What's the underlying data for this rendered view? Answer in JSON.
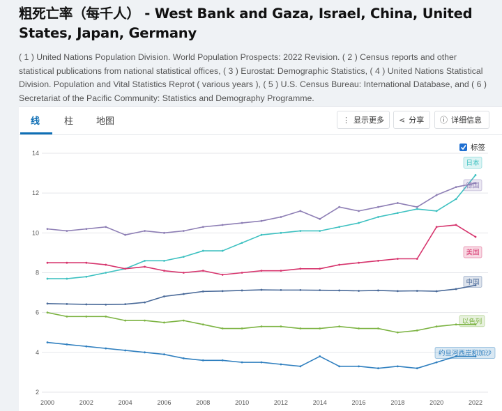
{
  "title": "粗死亡率（每千人） - West Bank and Gaza, Israel, China, United States, Japan, Germany",
  "source": "( 1 ) United Nations Population Division. World Population Prospects: 2022 Revision. ( 2 ) Census reports and other statistical publications from national statistical offices, ( 3 ) Eurostat: Demographic Statistics, ( 4 ) United Nations Statistical Division. Population and Vital Statistics Reprot ( various years ), ( 5 ) U.S. Census Bureau: International Database, and ( 6 ) Secretariat of the Pacific Community: Statistics and Demography Programme.",
  "tabs": [
    {
      "label": "线",
      "active": true
    },
    {
      "label": "柱",
      "active": false
    },
    {
      "label": "地图",
      "active": false
    }
  ],
  "toolbar": {
    "more_label": "显示更多",
    "more_icon": "vertical-dots-icon",
    "share_label": "分享",
    "share_icon": "share-icon",
    "details_label": "详细信息",
    "details_icon": "info-icon"
  },
  "labels_toggle": {
    "label": "标签",
    "checked": true
  },
  "chart_data": {
    "type": "line",
    "x": [
      2000,
      2001,
      2002,
      2003,
      2004,
      2005,
      2006,
      2007,
      2008,
      2009,
      2010,
      2011,
      2012,
      2013,
      2014,
      2015,
      2016,
      2017,
      2018,
      2019,
      2020,
      2021,
      2022
    ],
    "x_ticks": [
      2000,
      2002,
      2004,
      2006,
      2008,
      2010,
      2012,
      2014,
      2016,
      2018,
      2020,
      2022
    ],
    "y_ticks": [
      2,
      4,
      6,
      8,
      10,
      12,
      14
    ],
    "ylim": [
      2,
      14
    ],
    "grid": true,
    "series": [
      {
        "name": "日本",
        "color": "#3ec1c1",
        "values": [
          7.7,
          7.7,
          7.8,
          8.0,
          8.2,
          8.6,
          8.6,
          8.8,
          9.1,
          9.1,
          9.5,
          9.9,
          10.0,
          10.1,
          10.1,
          10.3,
          10.5,
          10.8,
          11.0,
          11.2,
          11.1,
          11.7,
          12.9
        ]
      },
      {
        "name": "德国",
        "color": "#8e7fb5",
        "values": [
          10.2,
          10.1,
          10.2,
          10.3,
          9.9,
          10.1,
          10.0,
          10.1,
          10.3,
          10.4,
          10.5,
          10.6,
          10.8,
          11.1,
          10.7,
          11.3,
          11.1,
          11.3,
          11.5,
          11.3,
          11.9,
          12.3,
          12.5
        ]
      },
      {
        "name": "美国",
        "color": "#d6336c",
        "values": [
          8.5,
          8.5,
          8.5,
          8.4,
          8.2,
          8.3,
          8.1,
          8.0,
          8.1,
          7.9,
          8.0,
          8.1,
          8.1,
          8.2,
          8.2,
          8.4,
          8.5,
          8.6,
          8.7,
          8.7,
          10.3,
          10.4,
          9.8
        ]
      },
      {
        "name": "中国",
        "color": "#4a6a99",
        "values": [
          6.45,
          6.43,
          6.41,
          6.4,
          6.42,
          6.51,
          6.81,
          6.93,
          7.06,
          7.08,
          7.11,
          7.14,
          7.13,
          7.13,
          7.12,
          7.11,
          7.09,
          7.11,
          7.08,
          7.09,
          7.07,
          7.18,
          7.37
        ]
      },
      {
        "name": "以色列",
        "color": "#7cb342",
        "values": [
          6.0,
          5.8,
          5.8,
          5.8,
          5.6,
          5.6,
          5.5,
          5.6,
          5.4,
          5.2,
          5.2,
          5.3,
          5.3,
          5.2,
          5.2,
          5.3,
          5.2,
          5.2,
          5.0,
          5.1,
          5.3,
          5.4,
          5.4
        ]
      },
      {
        "name": "约旦河西岸和加沙",
        "color": "#2f7fbf",
        "values": [
          4.5,
          4.4,
          4.3,
          4.2,
          4.1,
          4.0,
          3.9,
          3.7,
          3.6,
          3.6,
          3.5,
          3.5,
          3.4,
          3.3,
          3.8,
          3.3,
          3.3,
          3.2,
          3.3,
          3.2,
          3.5,
          3.8,
          3.8
        ]
      }
    ]
  }
}
